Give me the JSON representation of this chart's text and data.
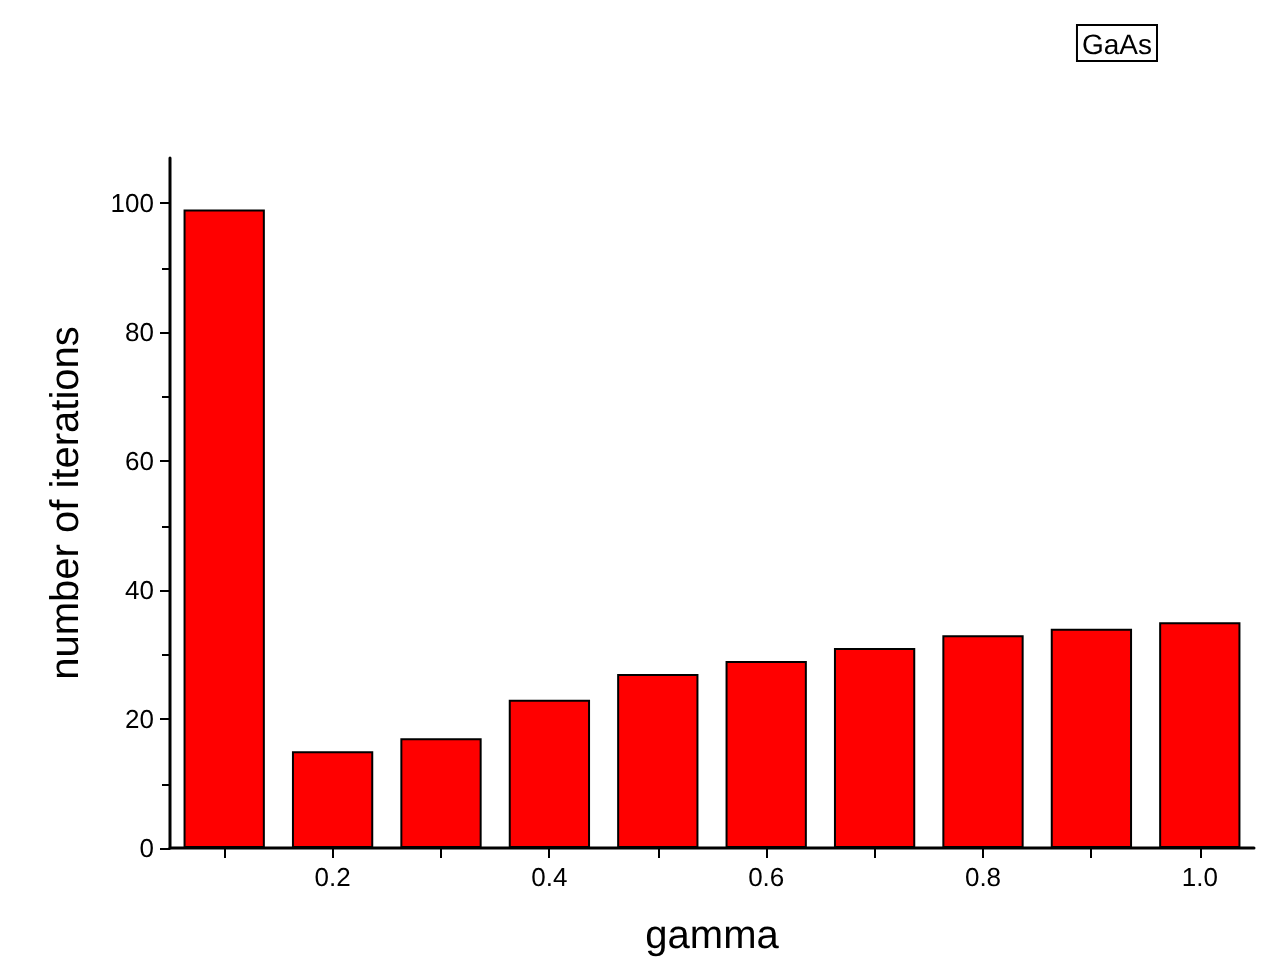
{
  "chart_data": {
    "type": "bar",
    "xlabel": "gamma",
    "ylabel": "number of iterations",
    "annotations": [
      "GaAs"
    ],
    "x": [
      0.1,
      0.2,
      0.3,
      0.4,
      0.5,
      0.6,
      0.7,
      0.8,
      0.9,
      1.0
    ],
    "values": [
      99,
      15,
      17,
      23,
      27,
      29,
      31,
      33,
      34,
      35
    ],
    "color": "#ff0000",
    "xlim": [
      0.05,
      1.05
    ],
    "xticks": [
      {
        "value": 0.1,
        "label": null
      },
      {
        "value": 0.2,
        "label": "0.2"
      },
      {
        "value": 0.3,
        "label": null
      },
      {
        "value": 0.4,
        "label": "0.4"
      },
      {
        "value": 0.5,
        "label": null
      },
      {
        "value": 0.6,
        "label": "0.6"
      },
      {
        "value": 0.7,
        "label": null
      },
      {
        "value": 0.8,
        "label": "0.8"
      },
      {
        "value": 0.9,
        "label": null
      },
      {
        "value": 1.0,
        "label": "1.0"
      }
    ],
    "ylim": [
      0,
      107
    ],
    "yticks": [
      0,
      20,
      40,
      60,
      80,
      100
    ],
    "grid": false
  }
}
